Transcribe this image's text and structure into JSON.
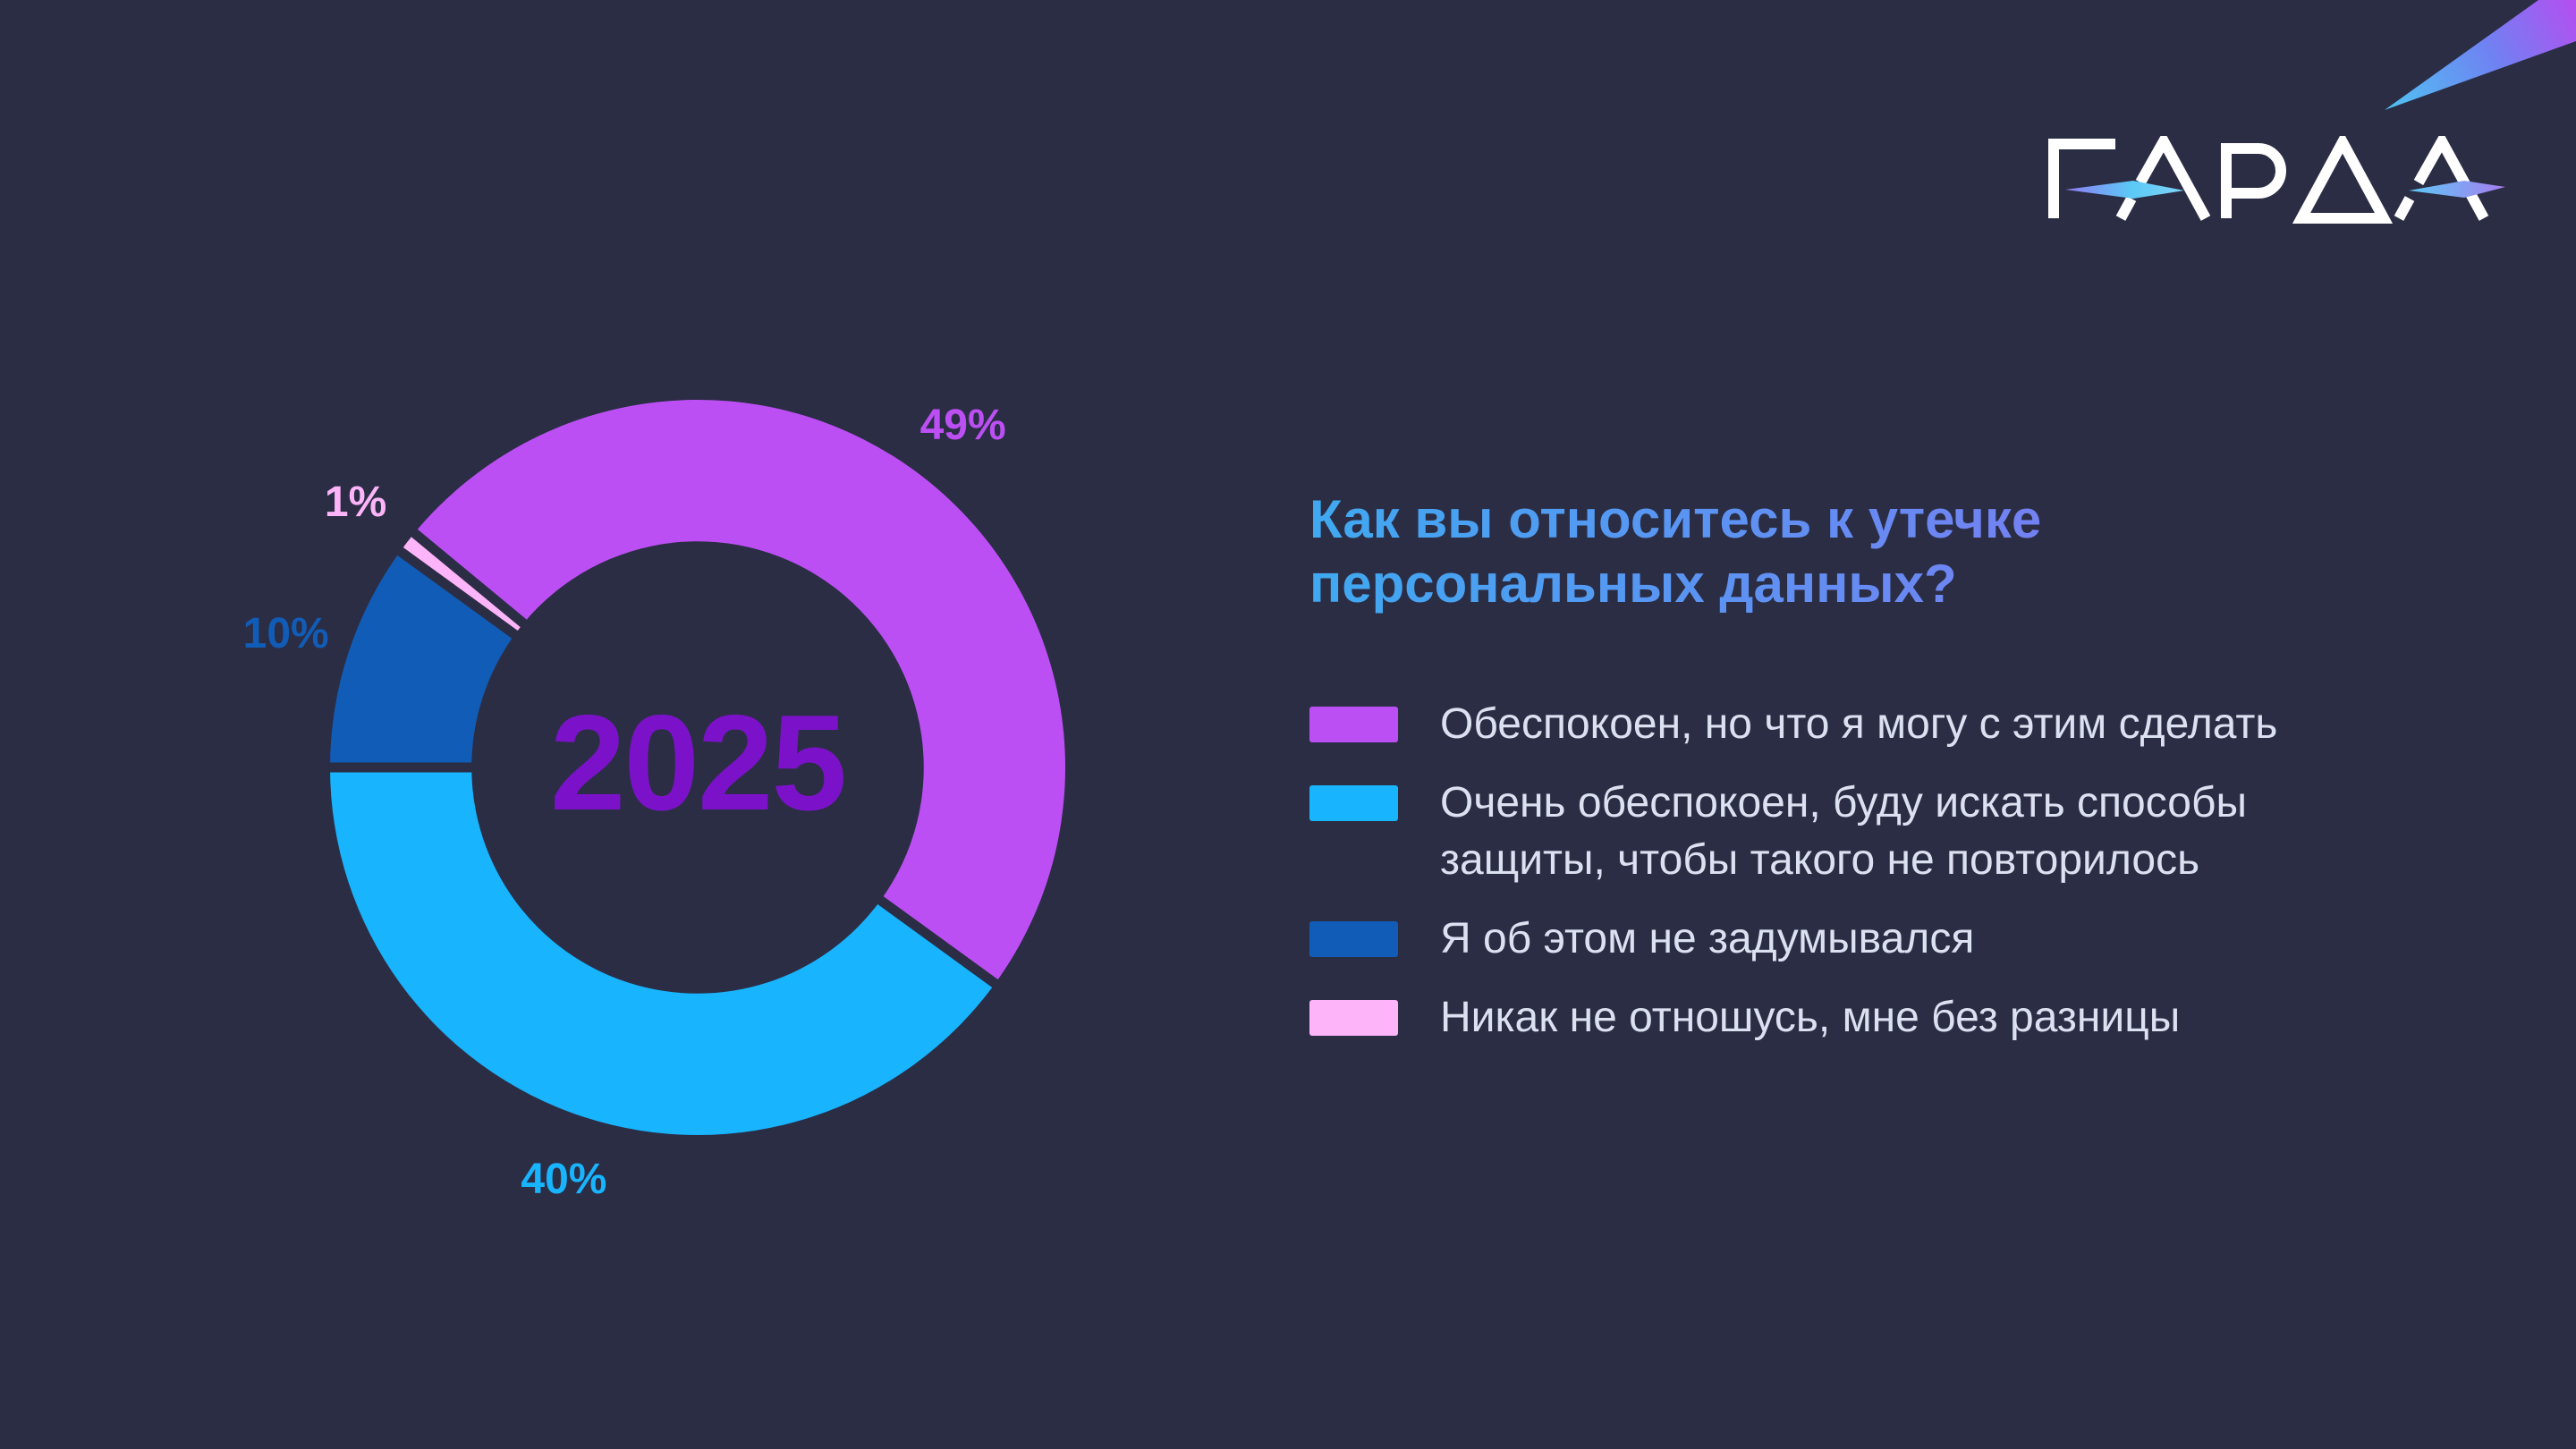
{
  "page": {
    "background_color": "#2B2D45"
  },
  "logo": {
    "text": "ГАРДА",
    "color": "#FFFFFF",
    "swoosh_gradient_left": {
      "from": "#8F7BF3",
      "to": "#5BC9F6"
    },
    "swoosh_gradient_right": {
      "from": "#5BC9F6",
      "to": "#A77DF0"
    }
  },
  "comet": {
    "gradient": {
      "from": "#4FC4F2",
      "mid": "#6F82F2",
      "to": "#B44FF0"
    }
  },
  "chart_data": {
    "type": "pie",
    "variant": "donut",
    "title": "Как вы относитесь к утечке\nперсональных данных?",
    "title_gradient": {
      "from": "#3FA9F1",
      "to": "#8F6CF3"
    },
    "center_label": "2025",
    "center_label_color": "#7B12C9",
    "start_angle_deg": -50.4,
    "inner_radius_ratio": 0.615,
    "gap_stroke_width": 11,
    "legend_position": "right",
    "legend_text_color": "#DCE1F1",
    "value_label_font_size": 48,
    "segments": [
      {
        "label": "Обеспокоен, но что я могу с этим сделать",
        "value": 49,
        "value_label": "49%",
        "color": "#BC4FF4"
      },
      {
        "label": "Очень обеспокоен, буду искать способы\nзащиты, чтобы такого не повторилось",
        "value": 40,
        "value_label": "40%",
        "color": "#18B4FE"
      },
      {
        "label": "Я об этом не задумывался",
        "value": 10,
        "value_label": "10%",
        "color": "#115CB7"
      },
      {
        "label": "Никак не отношусь, мне без разницы",
        "value": 1,
        "value_label": "1%",
        "color": "#FDB4F8"
      }
    ]
  }
}
